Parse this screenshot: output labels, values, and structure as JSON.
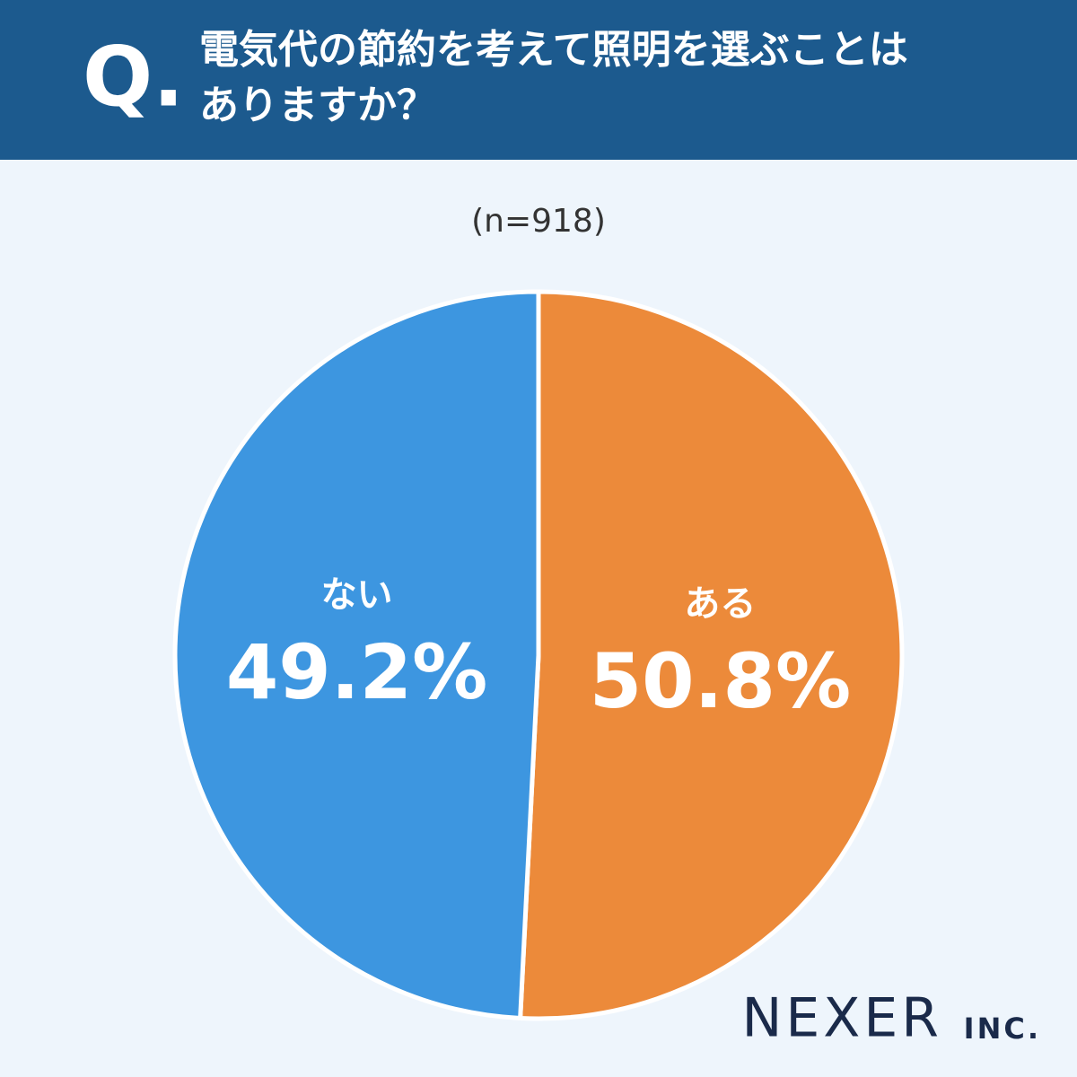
{
  "chart_data": {
    "type": "pie",
    "question_marker": "Q.",
    "title": [
      "電気代の節約を考えて照明を選ぶことは",
      "ありますか？"
    ],
    "subtitle": "(n=918)",
    "categories": [
      "ある",
      "ない"
    ],
    "values": [
      50.8,
      49.2
    ],
    "value_labels": [
      "50.8%",
      "49.2%"
    ],
    "colors": [
      "#ec8a3a",
      "#3d96e0"
    ],
    "brand": "NEXER",
    "brand_suffix": "INC."
  }
}
